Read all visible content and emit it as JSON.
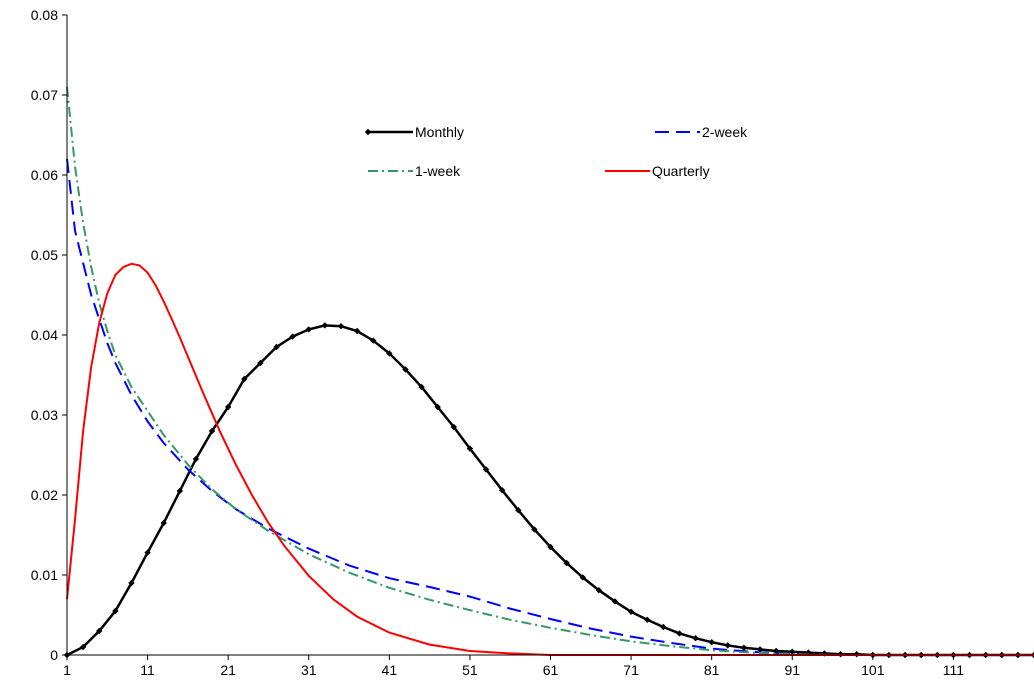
{
  "chart_data": {
    "type": "line",
    "title": "",
    "xlabel": "",
    "ylabel": "",
    "xlim": [
      1,
      121
    ],
    "ylim": [
      0,
      0.08
    ],
    "x_ticks": [
      "1",
      "11",
      "21",
      "31",
      "41",
      "51",
      "61",
      "71",
      "81",
      "91",
      "101",
      "111"
    ],
    "y_ticks": [
      "0",
      "0.01",
      "0.02",
      "0.03",
      "0.04",
      "0.05",
      "0.06",
      "0.07",
      "0.08"
    ],
    "grid": false,
    "legend": {
      "placement": "top-center, two columns"
    },
    "series": [
      {
        "name": "Monthly",
        "color": "#000000",
        "style": "solid with diamond markers",
        "points": [
          [
            1,
            0.0
          ],
          [
            3,
            0.001
          ],
          [
            5,
            0.003
          ],
          [
            7,
            0.0055
          ],
          [
            9,
            0.009
          ],
          [
            11,
            0.0128
          ],
          [
            13,
            0.0165
          ],
          [
            15,
            0.0205
          ],
          [
            17,
            0.0245
          ],
          [
            19,
            0.028
          ],
          [
            21,
            0.031
          ],
          [
            23,
            0.0345
          ],
          [
            25,
            0.0365
          ],
          [
            27,
            0.0385
          ],
          [
            29,
            0.0398
          ],
          [
            31,
            0.0407
          ],
          [
            33,
            0.0412
          ],
          [
            35,
            0.0411
          ],
          [
            37,
            0.0405
          ],
          [
            39,
            0.0393
          ],
          [
            41,
            0.0377
          ],
          [
            43,
            0.0357
          ],
          [
            45,
            0.0335
          ],
          [
            47,
            0.031
          ],
          [
            49,
            0.0285
          ],
          [
            51,
            0.0258
          ],
          [
            53,
            0.0232
          ],
          [
            55,
            0.0206
          ],
          [
            57,
            0.0181
          ],
          [
            59,
            0.0157
          ],
          [
            61,
            0.0135
          ],
          [
            63,
            0.0115
          ],
          [
            65,
            0.0097
          ],
          [
            67,
            0.0081
          ],
          [
            69,
            0.0067
          ],
          [
            71,
            0.0054
          ],
          [
            73,
            0.0044
          ],
          [
            75,
            0.0035
          ],
          [
            77,
            0.0027
          ],
          [
            79,
            0.0021
          ],
          [
            81,
            0.0016
          ],
          [
            83,
            0.0012
          ],
          [
            85,
            0.0009
          ],
          [
            87,
            0.0007
          ],
          [
            89,
            0.0005
          ],
          [
            91,
            0.0004
          ],
          [
            93,
            0.0003
          ],
          [
            95,
            0.0002
          ],
          [
            97,
            0.0001
          ],
          [
            99,
            0.0001
          ],
          [
            101,
            0.0
          ],
          [
            103,
            0.0
          ],
          [
            105,
            0.0
          ],
          [
            107,
            0.0
          ],
          [
            109,
            0.0
          ],
          [
            111,
            0.0
          ],
          [
            113,
            0.0
          ],
          [
            115,
            0.0
          ],
          [
            117,
            0.0
          ],
          [
            119,
            0.0
          ],
          [
            121,
            0.0
          ]
        ]
      },
      {
        "name": "2-week",
        "color": "#0000ff",
        "style": "dashed",
        "points": [
          [
            1,
            0.062
          ],
          [
            2,
            0.053
          ],
          [
            3,
            0.049
          ],
          [
            4,
            0.045
          ],
          [
            5,
            0.042
          ],
          [
            6,
            0.039
          ],
          [
            7,
            0.0365
          ],
          [
            9,
            0.0325
          ],
          [
            11,
            0.0292
          ],
          [
            13,
            0.0265
          ],
          [
            16,
            0.0232
          ],
          [
            19,
            0.0205
          ],
          [
            22,
            0.0182
          ],
          [
            26,
            0.0158
          ],
          [
            31,
            0.0133
          ],
          [
            36,
            0.0112
          ],
          [
            41,
            0.0096
          ],
          [
            46,
            0.0085
          ],
          [
            51,
            0.0073
          ],
          [
            56,
            0.0058
          ],
          [
            61,
            0.0045
          ],
          [
            66,
            0.0033
          ],
          [
            71,
            0.0023
          ],
          [
            76,
            0.0015
          ],
          [
            81,
            0.0008
          ],
          [
            86,
            0.0004
          ],
          [
            91,
            0.0001
          ],
          [
            96,
            0.0
          ],
          [
            101,
            0.0
          ],
          [
            111,
            0.0
          ],
          [
            121,
            0.0
          ]
        ]
      },
      {
        "name": "1-week",
        "color": "#339966",
        "style": "dash-dot",
        "points": [
          [
            1,
            0.071
          ],
          [
            2,
            0.061
          ],
          [
            3,
            0.054
          ],
          [
            4,
            0.0485
          ],
          [
            5,
            0.044
          ],
          [
            6,
            0.0405
          ],
          [
            7,
            0.0375
          ],
          [
            9,
            0.0335
          ],
          [
            11,
            0.0305
          ],
          [
            13,
            0.0275
          ],
          [
            16,
            0.0238
          ],
          [
            19,
            0.0207
          ],
          [
            22,
            0.0182
          ],
          [
            26,
            0.0155
          ],
          [
            31,
            0.0126
          ],
          [
            36,
            0.0103
          ],
          [
            41,
            0.0084
          ],
          [
            46,
            0.0069
          ],
          [
            51,
            0.0056
          ],
          [
            56,
            0.0044
          ],
          [
            61,
            0.0034
          ],
          [
            66,
            0.0025
          ],
          [
            71,
            0.0017
          ],
          [
            76,
            0.0011
          ],
          [
            81,
            0.0006
          ],
          [
            86,
            0.0003
          ],
          [
            91,
            0.0001
          ],
          [
            96,
            0.0
          ],
          [
            101,
            0.0
          ],
          [
            111,
            0.0
          ],
          [
            121,
            0.0
          ]
        ]
      },
      {
        "name": "Quarterly",
        "color": "#ff0000",
        "style": "solid",
        "points": [
          [
            1,
            0.007
          ],
          [
            2,
            0.017
          ],
          [
            3,
            0.028
          ],
          [
            4,
            0.036
          ],
          [
            5,
            0.0415
          ],
          [
            6,
            0.0452
          ],
          [
            7,
            0.0475
          ],
          [
            8,
            0.0485
          ],
          [
            9,
            0.0489
          ],
          [
            10,
            0.0487
          ],
          [
            11,
            0.0478
          ],
          [
            12,
            0.0462
          ],
          [
            13,
            0.0442
          ],
          [
            14,
            0.042
          ],
          [
            15,
            0.0397
          ],
          [
            16,
            0.0373
          ],
          [
            17,
            0.0349
          ],
          [
            18,
            0.0325
          ],
          [
            20,
            0.0279
          ],
          [
            22,
            0.0237
          ],
          [
            24,
            0.0199
          ],
          [
            26,
            0.0165
          ],
          [
            28,
            0.0136
          ],
          [
            31,
            0.0099
          ],
          [
            34,
            0.007
          ],
          [
            37,
            0.0048
          ],
          [
            41,
            0.0028
          ],
          [
            46,
            0.0013
          ],
          [
            51,
            0.0005
          ],
          [
            56,
            0.0002
          ],
          [
            61,
            0.0
          ],
          [
            71,
            0.0
          ],
          [
            81,
            0.0
          ],
          [
            91,
            0.0
          ],
          [
            101,
            0.0
          ],
          [
            111,
            0.0
          ],
          [
            121,
            0.0
          ]
        ]
      }
    ]
  }
}
